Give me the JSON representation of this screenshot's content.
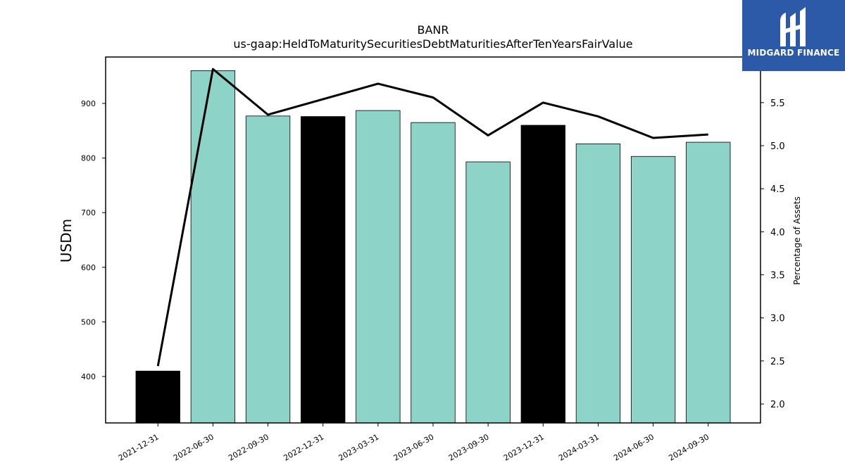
{
  "chart_data": {
    "type": "bar",
    "title": "BANR",
    "subtitle": "us-gaap:HeldToMaturitySecuritiesDebtMaturitiesAfterTenYearsFairValue",
    "ylabel": "USDm",
    "y2label": "Percentage of Assets",
    "categories": [
      "2021-12-31",
      "2022-06-30",
      "2022-09-30",
      "2022-12-31",
      "2023-03-31",
      "2023-06-30",
      "2023-09-30",
      "2023-12-31",
      "2024-03-31",
      "2024-06-30",
      "2024-09-30"
    ],
    "series": [
      {
        "type": "bar",
        "axis": "left",
        "values": [
          410,
          960,
          877,
          876,
          887,
          865,
          793,
          860,
          826,
          803,
          829
        ],
        "colors": [
          "#000000",
          "#8dd3c7",
          "#8dd3c7",
          "#000000",
          "#8dd3c7",
          "#8dd3c7",
          "#8dd3c7",
          "#000000",
          "#8dd3c7",
          "#8dd3c7",
          "#8dd3c7"
        ]
      },
      {
        "type": "line",
        "axis": "right",
        "color": "#000000",
        "values": [
          2.44,
          5.89,
          5.36,
          null,
          5.72,
          5.56,
          5.12,
          5.5,
          5.34,
          5.09,
          5.13
        ]
      }
    ],
    "ylim": [
      315,
      985
    ],
    "y2lim": [
      1.78,
      6.03
    ],
    "yticks": [
      400,
      500,
      600,
      700,
      800,
      900
    ],
    "y2ticks": [
      2.0,
      2.5,
      3.0,
      3.5,
      4.0,
      4.5,
      5.0,
      5.5
    ],
    "y2tick_labels": [
      "2.0",
      "2.5",
      "3.0",
      "3.5",
      "4.0",
      "4.5",
      "5.0",
      "5.5"
    ],
    "grid": false,
    "legend": "none"
  },
  "logo": {
    "text": "MIDGARD FINANCE",
    "background": "#2d5aa8",
    "icon": "midgard-logo-icon"
  }
}
